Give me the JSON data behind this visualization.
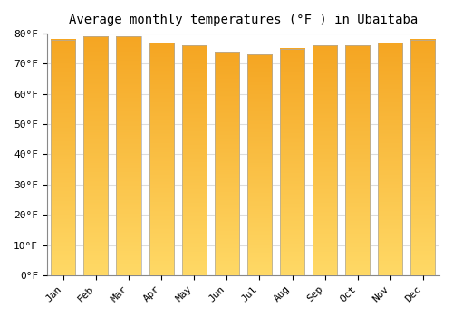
{
  "title": "Average monthly temperatures (°F ) in Ubaitaba",
  "months": [
    "Jan",
    "Feb",
    "Mar",
    "Apr",
    "May",
    "Jun",
    "Jul",
    "Aug",
    "Sep",
    "Oct",
    "Nov",
    "Dec"
  ],
  "values": [
    78,
    79,
    79,
    77,
    76,
    74,
    73,
    75,
    76,
    76,
    77,
    78
  ],
  "bar_color_top": "#F5A623",
  "bar_color_bottom": "#FFD966",
  "background_color": "#FFFFFF",
  "grid_color": "#DDDDDD",
  "ylim": [
    0,
    80
  ],
  "yticks": [
    0,
    10,
    20,
    30,
    40,
    50,
    60,
    70,
    80
  ],
  "title_fontsize": 10,
  "tick_fontsize": 8,
  "bar_edge_color": "#AAAAAA",
  "gradient_steps": 100
}
